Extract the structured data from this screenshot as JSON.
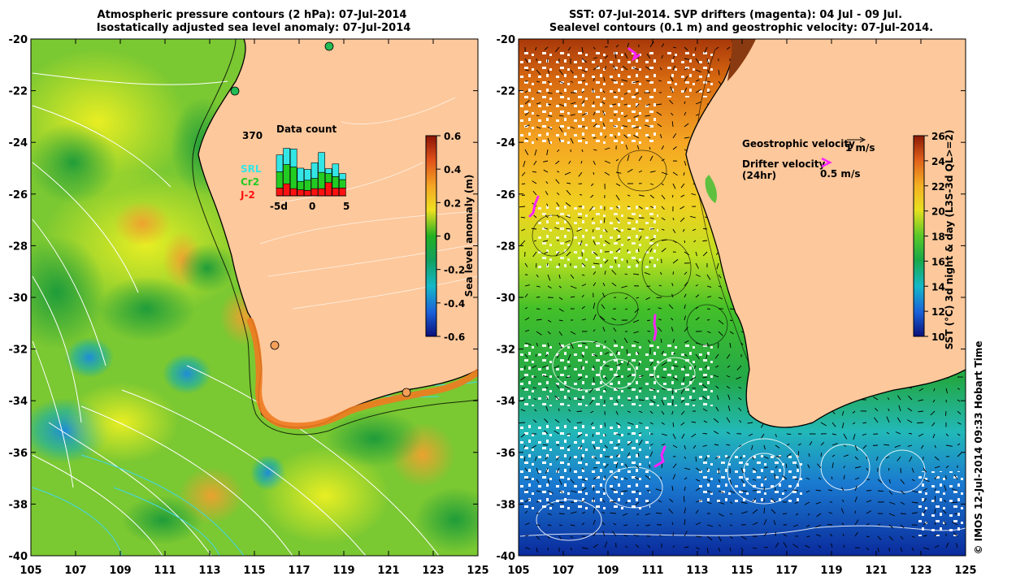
{
  "left_panel": {
    "title_line1": "Atmospheric pressure contours (2 hPa): 07-Jul-2014",
    "title_line2": "Isostatically adjusted sea level anomaly: 07-Jul-2014",
    "y_ticks": [
      "-20",
      "-22",
      "-24",
      "-26",
      "-28",
      "-30",
      "-32",
      "-34",
      "-36",
      "-38",
      "-40"
    ],
    "x_ticks": [
      "105",
      "107",
      "109",
      "111",
      "113",
      "115",
      "117",
      "119",
      "121",
      "123",
      "125"
    ],
    "colorbar": {
      "label": "Sea level anomaly (m)",
      "ticks": [
        "0.6",
        "0.4",
        "0.2",
        "0",
        "-0.2",
        "-0.4",
        "-0.6"
      ],
      "range": [
        -0.6,
        0.6
      ]
    },
    "inset": {
      "top_number": "370",
      "title": "Data count",
      "legend": [
        {
          "name": "SRL",
          "color": "#33e6e6"
        },
        {
          "name": "Cr2",
          "color": "#22cc22"
        },
        {
          "name": "J-2",
          "color": "#ff1111"
        }
      ],
      "x_ticks": [
        "-5d",
        "0",
        "5"
      ],
      "bars": [
        {
          "j2": 0.13,
          "cr2": 0.27,
          "srl": 0.28
        },
        {
          "j2": 0.2,
          "cr2": 0.32,
          "srl": 0.27
        },
        {
          "j2": 0.12,
          "cr2": 0.36,
          "srl": 0.3
        },
        {
          "j2": 0.1,
          "cr2": 0.14,
          "srl": 0.22
        },
        {
          "j2": 0.09,
          "cr2": 0.17,
          "srl": 0.18
        },
        {
          "j2": 0.12,
          "cr2": 0.17,
          "srl": 0.26
        },
        {
          "j2": 0.12,
          "cr2": 0.27,
          "srl": 0.33
        },
        {
          "j2": 0.22,
          "cr2": 0.15,
          "srl": 0.08
        },
        {
          "j2": 0.13,
          "cr2": 0.19,
          "srl": 0.21
        },
        {
          "j2": 0.13,
          "cr2": 0.14,
          "srl": 0.1
        }
      ]
    }
  },
  "right_panel": {
    "title_line1": "SST: 07-Jul-2014. SVP drifters (magenta): 04 Jul - 09 Jul.",
    "title_line2": "Sealevel contours (0.1 m) and geostrophic velocity: 07-Jul-2014.",
    "y_ticks": [
      "-20",
      "-22",
      "-24",
      "-26",
      "-28",
      "-30",
      "-32",
      "-34",
      "-36",
      "-38",
      "-40"
    ],
    "x_ticks": [
      "105",
      "107",
      "109",
      "111",
      "113",
      "115",
      "117",
      "119",
      "121",
      "123",
      "125"
    ],
    "colorbar": {
      "label": "SST (°C) 3d night & day (L3S-3d QL>=2)",
      "ticks": [
        "26",
        "24",
        "22",
        "20",
        "18",
        "16",
        "14",
        "12",
        "10"
      ],
      "range": [
        10,
        26
      ]
    },
    "legend": {
      "geo_label": "Geostrophic velocity",
      "geo_scale": "1 m/s",
      "drifter_label": "Drifter velocity",
      "drifter_sub": "(24hr)",
      "drifter_scale": "0.5 m/s"
    }
  },
  "copyright": "© IMOS 12-Jul-2014 09:33 Hobart Time",
  "colors": {
    "land": "#fdc89b",
    "drifter": "#ff22ff",
    "sla_low": "#0a1e8c",
    "sla_mid": "#22aa22",
    "sla_high": "#aa1a08",
    "sst_low": "#0a1e8c",
    "sst_mid": "#44cc22",
    "sst_high": "#9a3008"
  }
}
